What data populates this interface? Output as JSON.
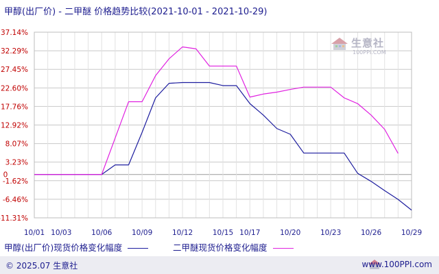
{
  "header": {
    "title": "甲醇(出厂价) - 二甲醚 价格趋势比较(2021-10-01 - 2021-10-29)"
  },
  "watermark": {
    "name": "生意社",
    "url": "100PPI.COM"
  },
  "footer": {
    "copyright": "© 2025.07 生意社",
    "site": "www.100PPI.com"
  },
  "colors": {
    "methanol": "#1c1c9e",
    "dme": "#e020e0",
    "axis_label": "#c00000",
    "grid": "#c8c8c8",
    "text": "#1c1c8e"
  },
  "chart_data": {
    "type": "line",
    "title": "甲醇(出厂价) - 二甲醚 价格趋势比较(2021-10-01 - 2021-10-29)",
    "xlabel": "",
    "ylabel": "",
    "x_ticks": [
      "10/01",
      "10/03",
      "10/06",
      "10/09",
      "10/12",
      "10/15",
      "10/17",
      "10/20",
      "10/23",
      "10/26",
      "10/29"
    ],
    "y_ticks": [
      "37.14%",
      "32.29%",
      "27.45%",
      "22.60%",
      "17.76%",
      "12.92%",
      "8.07%",
      "3.23%",
      "-1.62%",
      "-6.46%",
      "-11.31%"
    ],
    "zero_label": "0",
    "ylim": [
      -11.31,
      37.14
    ],
    "grid": true,
    "legend_position": "bottom",
    "series": [
      {
        "name": "甲醇(出厂价)现货价格变化幅度",
        "color": "#1c1c9e",
        "x": [
          "10/01",
          "10/02",
          "10/03",
          "10/04",
          "10/05",
          "10/06",
          "10/07",
          "10/08",
          "10/09",
          "10/10",
          "10/11",
          "10/12",
          "10/13",
          "10/14",
          "10/15",
          "10/16",
          "10/17",
          "10/18",
          "10/19",
          "10/20",
          "10/21",
          "10/22",
          "10/23",
          "10/24",
          "10/25",
          "10/26",
          "10/27",
          "10/28",
          "10/29"
        ],
        "values": [
          0.0,
          0.0,
          0.0,
          0.0,
          0.0,
          0.0,
          2.5,
          2.5,
          11.0,
          20.0,
          23.8,
          24.0,
          24.0,
          24.0,
          23.2,
          23.2,
          18.5,
          15.5,
          12.0,
          10.5,
          5.6,
          5.6,
          5.6,
          5.6,
          0.3,
          -1.8,
          -4.2,
          -6.5,
          -9.3
        ]
      },
      {
        "name": "二甲醚现货价格变化幅度",
        "color": "#e020e0",
        "x": [
          "10/01",
          "10/02",
          "10/03",
          "10/04",
          "10/05",
          "10/06",
          "10/07",
          "10/08",
          "10/09",
          "10/10",
          "10/11",
          "10/12",
          "10/13",
          "10/14",
          "10/15",
          "10/16",
          "10/17",
          "10/18",
          "10/19",
          "10/20",
          "10/21",
          "10/22",
          "10/23",
          "10/24",
          "10/25",
          "10/26",
          "10/27",
          "10/28",
          "10/29"
        ],
        "values": [
          0.0,
          0.0,
          0.0,
          0.0,
          0.0,
          0.0,
          9.5,
          19.0,
          19.0,
          25.8,
          30.2,
          33.3,
          32.8,
          28.3,
          28.3,
          28.3,
          20.2,
          21.0,
          21.5,
          22.2,
          22.8,
          22.8,
          22.8,
          20.0,
          18.5,
          15.5,
          11.8,
          5.5,
          null
        ]
      }
    ]
  }
}
